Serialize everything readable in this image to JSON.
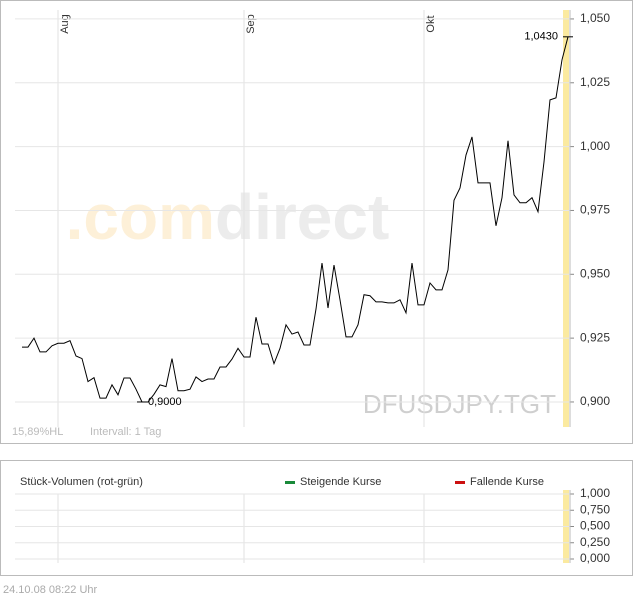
{
  "chart_data": [
    {
      "type": "line",
      "symbol": "DFUSDJPY.TGT",
      "watermark": [
        ".com",
        "direct"
      ],
      "range_note": "15,89%HL",
      "interval": "Intervall: 1 Tag",
      "categories": [
        null,
        null,
        null,
        null,
        null,
        null,
        "Aug",
        null,
        null,
        null,
        null,
        null,
        null,
        null,
        null,
        null,
        null,
        null,
        null,
        null,
        null,
        null,
        null,
        null,
        null,
        null,
        null,
        null,
        null,
        null,
        null,
        null,
        null,
        null,
        null,
        null,
        null,
        "Sep",
        null,
        null,
        null,
        null,
        null,
        null,
        null,
        null,
        null,
        null,
        null,
        null,
        null,
        null,
        null,
        null,
        null,
        null,
        null,
        null,
        null,
        null,
        null,
        null,
        null,
        null,
        null,
        null,
        null,
        "Okt",
        null,
        null,
        null,
        null,
        null,
        null,
        null,
        null,
        null,
        null,
        null,
        null,
        null,
        null,
        null,
        null,
        null,
        null,
        null,
        null,
        null,
        null,
        null,
        null
      ],
      "series": [
        {
          "color": "#000000",
          "values": [
            0.9215,
            0.9215,
            0.925,
            0.9196,
            0.9196,
            0.922,
            0.923,
            0.923,
            0.924,
            0.918,
            0.917,
            0.908,
            0.9095,
            0.9015,
            0.9015,
            0.9067,
            0.9028,
            0.9094,
            0.9094,
            0.905,
            0.9,
            0.9,
            0.903,
            0.9067,
            0.906,
            0.917,
            0.9044,
            0.9044,
            0.905,
            0.9098,
            0.908,
            0.909,
            0.909,
            0.9137,
            0.9137,
            0.9168,
            0.921,
            0.9176,
            0.9176,
            0.9332,
            0.9227,
            0.9227,
            0.915,
            0.921,
            0.9302,
            0.9266,
            0.9274,
            0.9223,
            0.9223,
            0.9364,
            0.9544,
            0.9368,
            0.9536,
            0.94,
            0.9255,
            0.9255,
            0.9302,
            0.942,
            0.9416,
            0.9392,
            0.9392,
            0.9388,
            0.9388,
            0.94,
            0.9349,
            0.9544,
            0.938,
            0.938,
            0.9466,
            0.9439,
            0.9439,
            0.9517,
            0.979,
            0.9838,
            0.9967,
            1.0038,
            0.9858,
            0.9858,
            0.9858,
            0.969,
            0.98,
            1.0023,
            0.9811,
            0.978,
            0.978,
            0.98,
            0.9745,
            0.994,
            1.0183,
            1.0191,
            1.034,
            1.043
          ],
          "value_labels": [
            null,
            null,
            null,
            null,
            null,
            null,
            null,
            null,
            null,
            null,
            null,
            null,
            null,
            null,
            null,
            null,
            null,
            null,
            null,
            null,
            "0,9000",
            null,
            null,
            null,
            null,
            null,
            null,
            null,
            null,
            null,
            null,
            null,
            null,
            null,
            null,
            null,
            null,
            null,
            null,
            null,
            null,
            null,
            null,
            null,
            null,
            null,
            null,
            null,
            null,
            null,
            null,
            null,
            null,
            null,
            null,
            null,
            null,
            null,
            null,
            null,
            null,
            null,
            null,
            null,
            null,
            null,
            null,
            null,
            null,
            null,
            null,
            null,
            null,
            null,
            null,
            null,
            null,
            null,
            null,
            null,
            null,
            null,
            null,
            null,
            null,
            null,
            null,
            null,
            null,
            null,
            null,
            "1,0430"
          ]
        }
      ],
      "ylim": [
        0.89,
        1.0535
      ],
      "yticks": [
        {
          "value": 0.9,
          "label": "0,900"
        },
        {
          "value": 0.925,
          "label": "0,925"
        },
        {
          "value": 0.95,
          "label": "0,950"
        },
        {
          "value": 0.975,
          "label": "0,975"
        },
        {
          "value": 1.0,
          "label": "1,000"
        },
        {
          "value": 1.025,
          "label": "1,025"
        },
        {
          "value": 1.05,
          "label": "1,050"
        }
      ],
      "grid": true
    },
    {
      "type": "bar",
      "title": "Stück-Volumen (rot-grün)",
      "series": [
        {
          "name": "Steigende Kurse",
          "color": "#1a8a3a"
        },
        {
          "name": "Fallende Kurse",
          "color": "#cc1111"
        }
      ],
      "ylim": [
        0,
        1
      ],
      "yticks": [
        {
          "value": 0,
          "label": "0,000"
        },
        {
          "value": 0.25,
          "label": "0,250"
        },
        {
          "value": 0.5,
          "label": "0,500"
        },
        {
          "value": 0.75,
          "label": "0,750"
        },
        {
          "value": 1,
          "label": "1,000"
        }
      ],
      "grid": true
    }
  ],
  "footer": "24.10.08   08:22 Uhr"
}
